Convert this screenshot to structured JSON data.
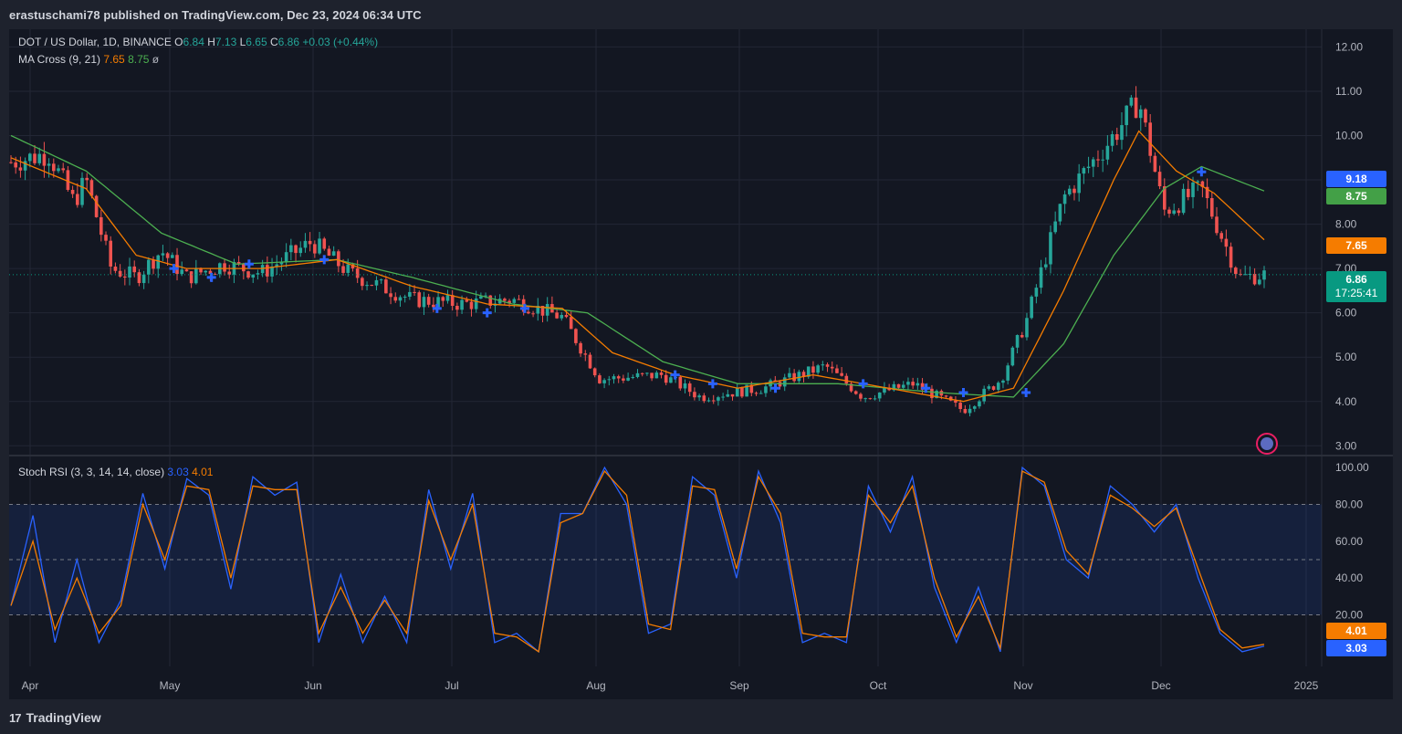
{
  "header": {
    "published_text": "erastuschami78 published on TradingView.com, Dec 23, 2024 06:34 UTC"
  },
  "legend": {
    "symbol": "DOT / US Dollar, 1D, BINANCE",
    "o_label": "O",
    "o_value": "6.84",
    "h_label": "H",
    "h_value": "7.13",
    "l_label": "L",
    "l_value": "6.65",
    "c_label": "C",
    "c_value": "6.86",
    "change": "+0.03 (+0.44%)",
    "ma_label": "MA Cross (9, 21)",
    "ma_fast": "7.65",
    "ma_slow": "8.75",
    "ma_extra": "ø",
    "stoch_label": "Stoch RSI (3, 3, 14, 14, close)",
    "stoch_k": "3.03",
    "stoch_d": "4.01"
  },
  "price_tags": {
    "cross": "9.18",
    "ma_slow": "8.75",
    "ma_fast": "7.65",
    "last": "6.86",
    "countdown": "17:25:41",
    "stoch_d": "4.01",
    "stoch_k": "3.03"
  },
  "footer": {
    "brand": "TradingView"
  },
  "colors": {
    "up": "#26a69a",
    "down": "#ef5350",
    "ma_fast": "#f57c00",
    "ma_slow": "#4caf50",
    "stoch_k": "#2962ff",
    "stoch_d": "#f57c00",
    "cross": "#2962ff"
  },
  "chart_data": [
    {
      "type": "candlestick",
      "title": "DOT / US Dollar, 1D, BINANCE",
      "xlabel": "",
      "ylabel": "",
      "x_ticks": [
        "Apr",
        "May",
        "Jun",
        "Jul",
        "Aug",
        "Sep",
        "Oct",
        "Nov",
        "Dec",
        "2025"
      ],
      "y_ticks": [
        "12.00",
        "11.00",
        "10.00",
        "9.00",
        "8.00",
        "7.00",
        "6.00",
        "5.00",
        "4.00",
        "3.00"
      ],
      "ylim": [
        2.8,
        12.4
      ],
      "close_series": [
        {
          "t": 0,
          "v": 9.4
        },
        {
          "t": 0.03,
          "v": 9.6
        },
        {
          "t": 0.05,
          "v": 8.5
        },
        {
          "t": 0.06,
          "v": 9.0
        },
        {
          "t": 0.08,
          "v": 7.0
        },
        {
          "t": 0.1,
          "v": 6.8
        },
        {
          "t": 0.12,
          "v": 7.4
        },
        {
          "t": 0.14,
          "v": 6.8
        },
        {
          "t": 0.17,
          "v": 7.1
        },
        {
          "t": 0.2,
          "v": 6.9
        },
        {
          "t": 0.24,
          "v": 7.6
        },
        {
          "t": 0.27,
          "v": 6.9
        },
        {
          "t": 0.32,
          "v": 6.3
        },
        {
          "t": 0.36,
          "v": 6.2
        },
        {
          "t": 0.4,
          "v": 6.3
        },
        {
          "t": 0.44,
          "v": 5.9
        },
        {
          "t": 0.47,
          "v": 4.5
        },
        {
          "t": 0.52,
          "v": 4.6
        },
        {
          "t": 0.55,
          "v": 4.1
        },
        {
          "t": 0.6,
          "v": 4.3
        },
        {
          "t": 0.65,
          "v": 4.8
        },
        {
          "t": 0.68,
          "v": 4.1
        },
        {
          "t": 0.72,
          "v": 4.4
        },
        {
          "t": 0.76,
          "v": 3.8
        },
        {
          "t": 0.79,
          "v": 4.5
        },
        {
          "t": 0.81,
          "v": 5.8
        },
        {
          "t": 0.84,
          "v": 8.6
        },
        {
          "t": 0.88,
          "v": 10.0
        },
        {
          "t": 0.9,
          "v": 10.8
        },
        {
          "t": 0.92,
          "v": 8.3
        },
        {
          "t": 0.95,
          "v": 8.8
        },
        {
          "t": 0.98,
          "v": 6.8
        },
        {
          "t": 1.0,
          "v": 6.86
        }
      ],
      "ma_fast_series": [
        {
          "t": 0,
          "v": 9.5
        },
        {
          "t": 0.06,
          "v": 8.8
        },
        {
          "t": 0.1,
          "v": 7.3
        },
        {
          "t": 0.14,
          "v": 7.0
        },
        {
          "t": 0.2,
          "v": 7.0
        },
        {
          "t": 0.26,
          "v": 7.2
        },
        {
          "t": 0.32,
          "v": 6.6
        },
        {
          "t": 0.38,
          "v": 6.2
        },
        {
          "t": 0.44,
          "v": 6.1
        },
        {
          "t": 0.48,
          "v": 5.1
        },
        {
          "t": 0.53,
          "v": 4.6
        },
        {
          "t": 0.58,
          "v": 4.3
        },
        {
          "t": 0.64,
          "v": 4.6
        },
        {
          "t": 0.7,
          "v": 4.3
        },
        {
          "t": 0.76,
          "v": 4.0
        },
        {
          "t": 0.8,
          "v": 4.3
        },
        {
          "t": 0.84,
          "v": 6.5
        },
        {
          "t": 0.88,
          "v": 9.0
        },
        {
          "t": 0.9,
          "v": 10.1
        },
        {
          "t": 0.93,
          "v": 9.2
        },
        {
          "t": 0.96,
          "v": 8.7
        },
        {
          "t": 1.0,
          "v": 7.65
        }
      ],
      "ma_slow_series": [
        {
          "t": 0,
          "v": 10.0
        },
        {
          "t": 0.06,
          "v": 9.2
        },
        {
          "t": 0.12,
          "v": 7.8
        },
        {
          "t": 0.18,
          "v": 7.1
        },
        {
          "t": 0.26,
          "v": 7.2
        },
        {
          "t": 0.32,
          "v": 6.8
        },
        {
          "t": 0.4,
          "v": 6.2
        },
        {
          "t": 0.46,
          "v": 6.0
        },
        {
          "t": 0.52,
          "v": 4.9
        },
        {
          "t": 0.58,
          "v": 4.4
        },
        {
          "t": 0.66,
          "v": 4.4
        },
        {
          "t": 0.74,
          "v": 4.2
        },
        {
          "t": 0.8,
          "v": 4.1
        },
        {
          "t": 0.84,
          "v": 5.3
        },
        {
          "t": 0.88,
          "v": 7.3
        },
        {
          "t": 0.92,
          "v": 8.8
        },
        {
          "t": 0.95,
          "v": 9.3
        },
        {
          "t": 1.0,
          "v": 8.75
        }
      ],
      "cross_markers": [
        {
          "t": 0.13,
          "v": 7.0
        },
        {
          "t": 0.16,
          "v": 6.8
        },
        {
          "t": 0.19,
          "v": 7.1
        },
        {
          "t": 0.25,
          "v": 7.2
        },
        {
          "t": 0.34,
          "v": 6.1
        },
        {
          "t": 0.38,
          "v": 6.0
        },
        {
          "t": 0.41,
          "v": 6.1
        },
        {
          "t": 0.53,
          "v": 4.6
        },
        {
          "t": 0.56,
          "v": 4.4
        },
        {
          "t": 0.61,
          "v": 4.3
        },
        {
          "t": 0.68,
          "v": 4.4
        },
        {
          "t": 0.73,
          "v": 4.3
        },
        {
          "t": 0.76,
          "v": 4.2
        },
        {
          "t": 0.81,
          "v": 4.2
        },
        {
          "t": 0.95,
          "v": 9.18
        }
      ]
    },
    {
      "type": "line",
      "title": "Stoch RSI (3, 3, 14, 14, close)",
      "xlabel": "",
      "ylabel": "",
      "y_ticks": [
        "100.00",
        "80.00",
        "60.00",
        "40.00",
        "20.00"
      ],
      "ylim": [
        -8,
        106
      ],
      "band": [
        20,
        80
      ],
      "series": [
        {
          "name": "K",
          "values": [
            25,
            74,
            5,
            50,
            5,
            28,
            86,
            45,
            94,
            85,
            34,
            95,
            85,
            92,
            5,
            42,
            5,
            30,
            5,
            88,
            45,
            86,
            5,
            10,
            0,
            75,
            75,
            100,
            80,
            10,
            15,
            95,
            85,
            40,
            98,
            70,
            5,
            10,
            5,
            90,
            65,
            95,
            35,
            5,
            35,
            0,
            100,
            90,
            50,
            40,
            90,
            80,
            65,
            80,
            40,
            10,
            0,
            3
          ]
        },
        {
          "name": "D",
          "values": [
            25,
            60,
            12,
            40,
            10,
            25,
            80,
            50,
            90,
            88,
            40,
            90,
            88,
            88,
            10,
            35,
            10,
            28,
            10,
            82,
            50,
            80,
            10,
            8,
            0,
            70,
            75,
            98,
            85,
            15,
            12,
            90,
            88,
            45,
            95,
            75,
            10,
            8,
            8,
            85,
            70,
            90,
            40,
            8,
            30,
            2,
            98,
            92,
            55,
            42,
            85,
            78,
            68,
            78,
            45,
            12,
            2,
            4
          ]
        }
      ]
    }
  ]
}
